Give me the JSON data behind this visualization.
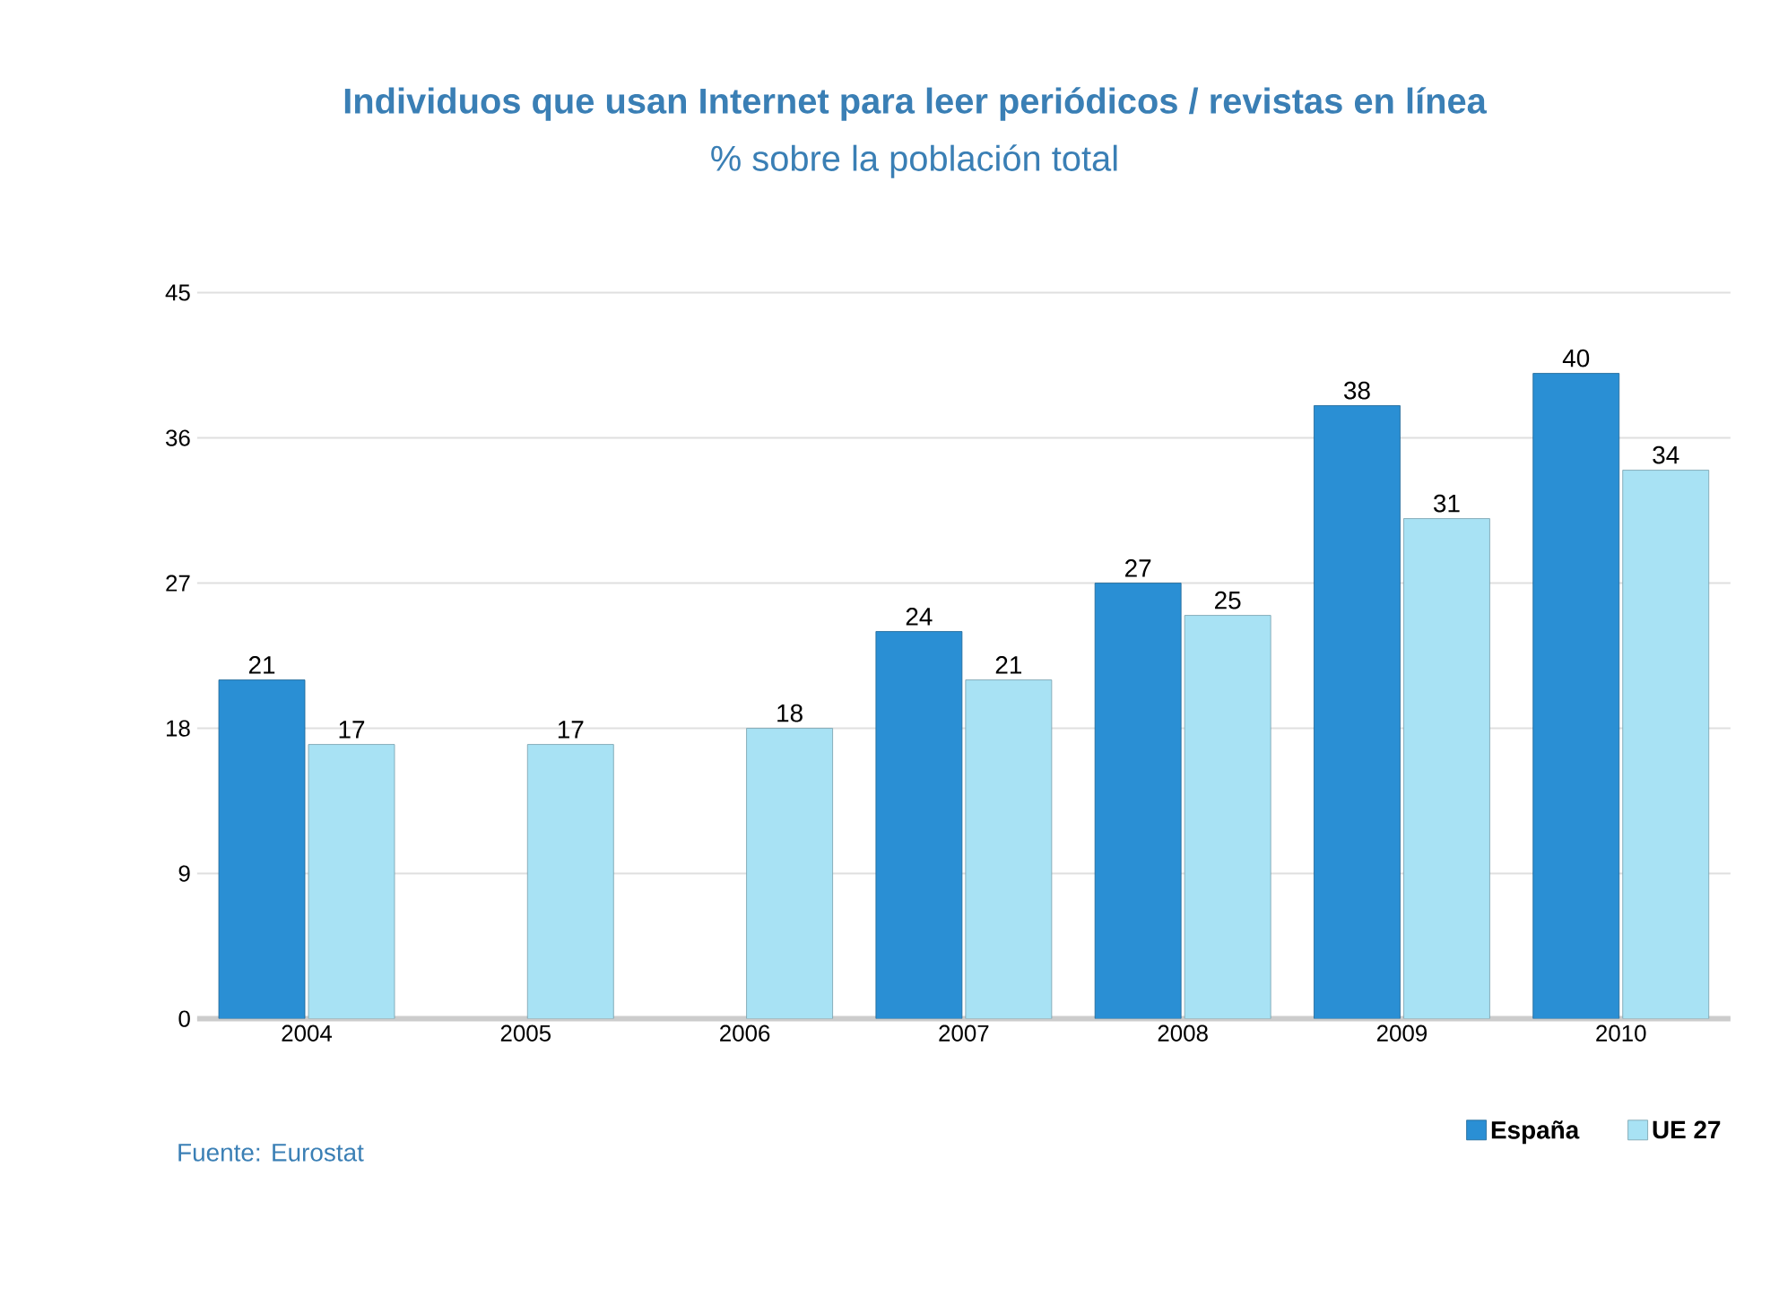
{
  "chart_data": {
    "type": "bar",
    "title": "Individuos que usan Internet para leer periódicos / revistas en línea",
    "subtitle": "% sobre la población total",
    "categories": [
      "2004",
      "2005",
      "2006",
      "2007",
      "2008",
      "2009",
      "2010"
    ],
    "series": [
      {
        "name": "España",
        "color": "#2a8fd4",
        "values": [
          21,
          null,
          null,
          24,
          27,
          38,
          40
        ]
      },
      {
        "name": "UE 27",
        "color": "#a8e2f4",
        "values": [
          17,
          17,
          18,
          21,
          25,
          31,
          34
        ]
      }
    ],
    "ylim": [
      0,
      45
    ],
    "yticks": [
      0,
      9,
      18,
      27,
      36,
      45
    ],
    "grid": "y",
    "data_labels": true,
    "legend": "bottom right",
    "annotations": [
      "Fuente: Eurostat"
    ]
  }
}
